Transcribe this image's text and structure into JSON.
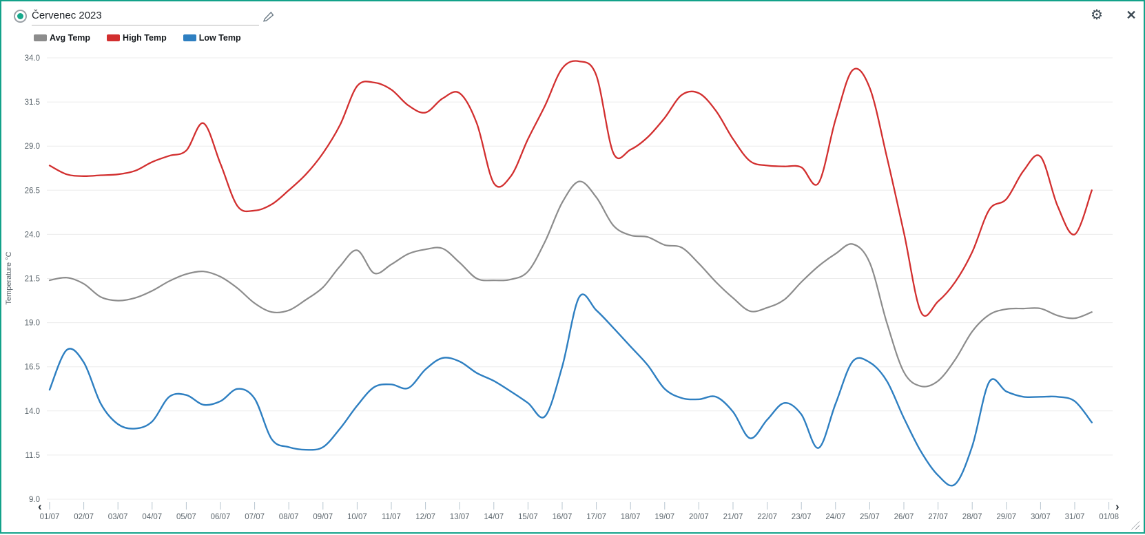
{
  "header": {
    "radio": "selected",
    "title": "Červenec 2023",
    "edit_icon": "pencil-icon",
    "settings_icon": "gear-icon",
    "close_icon": "close-icon",
    "accent_color": "#13a28a"
  },
  "legend": [
    {
      "label": "Avg Temp",
      "color": "#8c8c8c"
    },
    {
      "label": "High Temp",
      "color": "#d22f2f"
    },
    {
      "label": "Low Temp",
      "color": "#2e7fc1"
    }
  ],
  "nav": {
    "prev": "‹",
    "next": "›"
  },
  "chart_data": {
    "type": "line",
    "title": "Červenec 2023",
    "xlabel": "",
    "ylabel": "Temperature °C",
    "ylim": [
      9.0,
      34.0
    ],
    "grid": true,
    "legend_position": "top-left",
    "ytick_labels": [
      "34.0",
      "31.5",
      "29.0",
      "26.5",
      "24.0",
      "21.5",
      "19.0",
      "16.5",
      "14.0",
      "11.5",
      "9.0"
    ],
    "ytick_values": [
      34.0,
      31.5,
      29.0,
      26.5,
      24.0,
      21.5,
      19.0,
      16.5,
      14.0,
      11.5,
      9.0
    ],
    "xtick_labels": [
      "01/07",
      "02/07",
      "03/07",
      "04/07",
      "05/07",
      "06/07",
      "07/07",
      "08/07",
      "09/07",
      "10/07",
      "11/07",
      "12/07",
      "13/07",
      "14/07",
      "15/07",
      "16/07",
      "17/07",
      "18/07",
      "19/07",
      "20/07",
      "21/07",
      "22/07",
      "23/07",
      "24/07",
      "25/07",
      "26/07",
      "27/07",
      "28/07",
      "29/07",
      "30/07",
      "31/07",
      "01/08"
    ],
    "x_unit": "day of July (half-day sampling)",
    "x": [
      1,
      1.5,
      2,
      2.5,
      3,
      3.5,
      4,
      4.5,
      5,
      5.5,
      6,
      6.5,
      7,
      7.5,
      8,
      8.5,
      9,
      9.5,
      10,
      10.5,
      11,
      11.5,
      12,
      12.5,
      13,
      13.5,
      14,
      14.5,
      15,
      15.5,
      16,
      16.5,
      17,
      17.5,
      18,
      18.5,
      19,
      19.5,
      20,
      20.5,
      21,
      21.5,
      22,
      22.5,
      23,
      23.5,
      24,
      24.5,
      25,
      25.5,
      26,
      26.5,
      27,
      27.5,
      28,
      28.5,
      29,
      29.5,
      30,
      30.5,
      31,
      31.5
    ],
    "series": [
      {
        "name": "Avg Temp",
        "color": "#8c8c8c",
        "width": 2.2,
        "values": [
          21.4,
          21.55,
          21.2,
          20.45,
          20.25,
          20.4,
          20.8,
          21.35,
          21.75,
          21.9,
          21.6,
          20.95,
          20.1,
          19.6,
          19.7,
          20.3,
          21.0,
          22.2,
          23.1,
          21.8,
          22.3,
          22.9,
          23.15,
          23.2,
          22.4,
          21.5,
          21.4,
          21.45,
          21.9,
          23.6,
          25.8,
          27.0,
          26.1,
          24.5,
          23.95,
          23.85,
          23.4,
          23.25,
          22.35,
          21.3,
          20.4,
          19.65,
          19.85,
          20.3,
          21.3,
          22.2,
          22.9,
          23.45,
          22.4,
          19.0,
          16.2,
          15.4,
          15.7,
          16.9,
          18.5,
          19.45,
          19.77,
          19.8,
          19.8,
          19.4,
          19.25,
          19.6
        ]
      },
      {
        "name": "High Temp",
        "color": "#d22f2f",
        "width": 2.3,
        "values": [
          27.9,
          27.4,
          27.3,
          27.35,
          27.4,
          27.6,
          28.1,
          28.45,
          28.75,
          30.3,
          28.0,
          25.6,
          25.35,
          25.7,
          26.5,
          27.4,
          28.6,
          30.2,
          32.4,
          32.6,
          32.2,
          31.3,
          30.9,
          31.7,
          32.0,
          30.3,
          26.9,
          27.3,
          29.4,
          31.3,
          33.4,
          33.8,
          33.0,
          28.6,
          28.8,
          29.5,
          30.6,
          31.9,
          32.0,
          31.0,
          29.4,
          28.15,
          27.9,
          27.85,
          27.8,
          26.9,
          30.5,
          33.3,
          32.3,
          28.4,
          24.1,
          19.6,
          20.2,
          21.3,
          23.0,
          25.4,
          26.0,
          27.6,
          28.4,
          25.6,
          24.0,
          26.5
        ]
      },
      {
        "name": "Low Temp",
        "color": "#2e7fc1",
        "width": 2.4,
        "values": [
          15.2,
          17.45,
          16.75,
          14.4,
          13.25,
          13.0,
          13.4,
          14.8,
          14.9,
          14.35,
          14.55,
          15.25,
          14.7,
          12.4,
          11.95,
          11.8,
          11.95,
          13.0,
          14.3,
          15.35,
          15.5,
          15.3,
          16.35,
          17.0,
          16.8,
          16.15,
          15.7,
          15.1,
          14.45,
          13.7,
          16.5,
          20.45,
          19.7,
          18.7,
          17.65,
          16.6,
          15.25,
          14.73,
          14.66,
          14.8,
          13.95,
          12.45,
          13.5,
          14.45,
          13.8,
          11.9,
          14.4,
          16.8,
          16.75,
          15.7,
          13.6,
          11.7,
          10.35,
          9.85,
          12.0,
          15.65,
          15.1,
          14.8,
          14.8,
          14.8,
          14.55,
          13.35
        ]
      }
    ]
  }
}
